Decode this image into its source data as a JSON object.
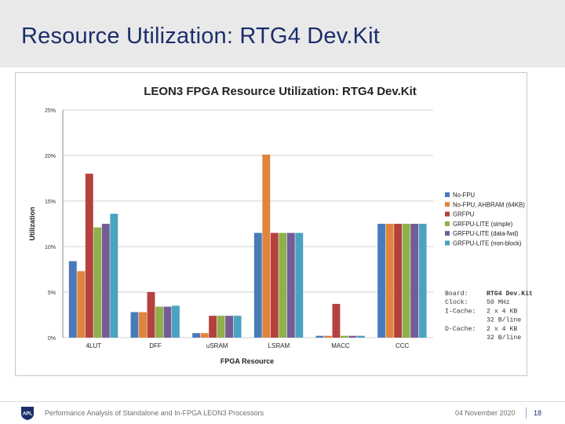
{
  "slide": {
    "title": "Resource Utilization: RTG4 Dev.Kit"
  },
  "footer": {
    "logo_text": "APL",
    "text": "Performance Analysis of Standalone and In-FPGA LEON3 Processors",
    "date": "04 November 2020",
    "page": "18"
  },
  "colors": {
    "header_bg": "#e9e9e9",
    "title": "#1c2f6b"
  },
  "chart_data": {
    "type": "bar",
    "title": "LEON3 FPGA Resource Utilization: RTG4 Dev.Kit",
    "xlabel": "FPGA Resource",
    "ylabel": "Utilization",
    "ylim": [
      0,
      25
    ],
    "yticks": [
      0,
      5,
      10,
      15,
      20,
      25
    ],
    "ytick_labels": [
      "0%",
      "5%",
      "10%",
      "15%",
      "20%",
      "25%"
    ],
    "grid": true,
    "legend_position": "right",
    "categories": [
      "4LUT",
      "DFF",
      "uSRAM",
      "LSRAM",
      "MACC",
      "CCC"
    ],
    "series": [
      {
        "name": "No-FPU",
        "color": "#4a7ab9",
        "values": [
          8.4,
          2.8,
          0.5,
          11.5,
          0.2,
          12.5
        ]
      },
      {
        "name": "No-FPU, AHBRAM (64KB)",
        "color": "#e0843e",
        "values": [
          7.3,
          2.8,
          0.5,
          20.1,
          0.2,
          12.5
        ]
      },
      {
        "name": "GRFPU",
        "color": "#b5413f",
        "values": [
          18.0,
          5.0,
          2.4,
          11.5,
          3.7,
          12.5
        ]
      },
      {
        "name": "GRFPU-LITE (simple)",
        "color": "#8fb04a",
        "values": [
          12.1,
          3.4,
          2.4,
          11.5,
          0.2,
          12.5
        ]
      },
      {
        "name": "GRFPU-LITE (data-fwd)",
        "color": "#745d96",
        "values": [
          12.5,
          3.4,
          2.4,
          11.5,
          0.2,
          12.5
        ]
      },
      {
        "name": "GRFPU-LITE (non-block)",
        "color": "#4aa3c0",
        "values": [
          13.6,
          3.5,
          2.4,
          11.5,
          0.2,
          12.5
        ]
      }
    ],
    "annotation": [
      {
        "label": "Board:",
        "value": "RTG4 Dev.Kit"
      },
      {
        "label": "Clock:",
        "value": "50 MHz"
      },
      {
        "label": "I-Cache:",
        "value": "2 x 4 KB"
      },
      {
        "label": "",
        "value": "32 B/line"
      },
      {
        "label": "D-Cache:",
        "value": "2 x 4 KB"
      },
      {
        "label": "",
        "value": "32 B/line"
      }
    ]
  }
}
